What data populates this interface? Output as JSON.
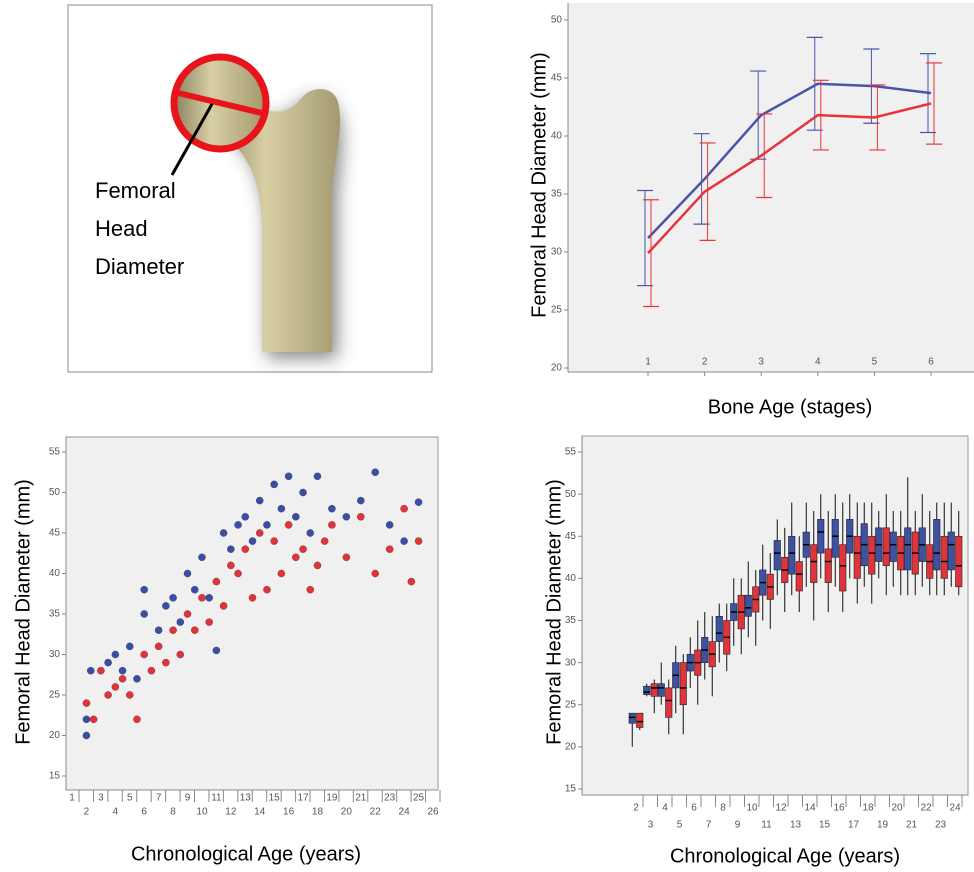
{
  "diagram": {
    "label": [
      "Femoral",
      "Head",
      "Diameter"
    ]
  },
  "chart_data": [
    {
      "type": "line",
      "x_label": "Bone Age (stages)",
      "y_label": "Femoral Head Diameter (mm)",
      "categories": [
        "1",
        "2",
        "3",
        "4",
        "5",
        "6"
      ],
      "ylim": [
        20,
        50
      ],
      "yticks": [
        20,
        25,
        30,
        35,
        40,
        45,
        50
      ],
      "series": [
        {
          "color": "#4a55a8",
          "values": [
            31.2,
            36.3,
            41.8,
            44.5,
            44.3,
            43.7
          ],
          "errors": [
            4.1,
            3.9,
            3.8,
            4.0,
            3.2,
            3.4
          ]
        },
        {
          "color": "#e8333b",
          "values": [
            29.9,
            35.2,
            38.3,
            41.8,
            41.6,
            42.8
          ],
          "errors": [
            4.6,
            4.2,
            3.6,
            3.0,
            2.8,
            3.5
          ]
        }
      ]
    },
    {
      "type": "scatter",
      "x_label": "Chronological Age (years)",
      "y_label": "Femoral Head Diameter (mm)",
      "xlim": [
        1,
        26
      ],
      "xticks": [
        1,
        2,
        3,
        4,
        5,
        6,
        7,
        8,
        9,
        10,
        11,
        12,
        13,
        14,
        15,
        16,
        17,
        18,
        19,
        20,
        21,
        22,
        23,
        24,
        25,
        26
      ],
      "ylim": [
        15,
        55
      ],
      "yticks": [
        15,
        20,
        25,
        30,
        35,
        40,
        45,
        50,
        55
      ],
      "series": [
        {
          "color": "#3b4ea6",
          "x": [
            2,
            2,
            2.3,
            3.5,
            4,
            4.5,
            5,
            5.5,
            6,
            6,
            7,
            7.5,
            8,
            8.5,
            9,
            9.5,
            10,
            10.5,
            11,
            11.5,
            12,
            12.5,
            13,
            13.5,
            14,
            14.5,
            15,
            15.5,
            16,
            16.5,
            17,
            17.5,
            18,
            19,
            20,
            21,
            22,
            23,
            24,
            25
          ],
          "y": [
            20,
            22,
            28,
            29,
            30,
            28,
            31,
            27,
            38,
            35,
            33,
            36,
            37,
            34,
            40,
            38,
            42,
            37,
            30.5,
            45,
            43,
            46,
            47,
            44,
            49,
            46,
            51,
            48,
            52,
            47,
            50,
            45,
            52,
            48,
            47,
            49,
            52.5,
            46,
            44,
            48.8
          ]
        },
        {
          "color": "#e3323a",
          "x": [
            2,
            2.5,
            3,
            3.5,
            4,
            4.5,
            5,
            5.5,
            6,
            6.5,
            7,
            7.5,
            8,
            8.5,
            9,
            9.5,
            10,
            10.5,
            11,
            11.5,
            12,
            12.5,
            13,
            13.5,
            14,
            14.5,
            15,
            15.5,
            16,
            16.5,
            17,
            17.5,
            18,
            18.5,
            19,
            20,
            21,
            22,
            23,
            24,
            24.5,
            25
          ],
          "y": [
            24,
            22,
            28,
            25,
            26,
            27,
            25,
            22,
            30,
            28,
            31,
            29,
            33,
            30,
            35,
            33,
            37,
            34,
            39,
            36,
            41,
            40,
            43,
            37,
            45,
            38,
            44,
            40,
            46,
            42,
            43,
            38,
            41,
            44,
            46,
            42,
            47,
            40,
            43,
            48,
            39,
            44
          ]
        }
      ]
    },
    {
      "type": "box",
      "x_label": "Chronological Age (years)",
      "y_label": "Femoral Head Diameter (mm)",
      "categories": [
        "2",
        "3",
        "4",
        "5",
        "6",
        "7",
        "8",
        "9",
        "10",
        "11",
        "12",
        "13",
        "14",
        "15",
        "16",
        "17",
        "18",
        "19",
        "20",
        "21",
        "22",
        "23",
        "24"
      ],
      "ylim": [
        15,
        55
      ],
      "yticks": [
        15,
        20,
        25,
        30,
        35,
        40,
        45,
        50,
        55
      ],
      "series": [
        {
          "color": "#3f51a3",
          "min": [
            20,
            26,
            25,
            24,
            27,
            28,
            30,
            32,
            33,
            35,
            38,
            38,
            39,
            40,
            39,
            40,
            39,
            40,
            39,
            38,
            39,
            38,
            39
          ],
          "q1": [
            22.8,
            26.2,
            26,
            27,
            29,
            30,
            32.5,
            35,
            35.5,
            38,
            41,
            40.5,
            42.5,
            43,
            42.5,
            43,
            41.5,
            42,
            42,
            41,
            42,
            41,
            41
          ],
          "median": [
            23.5,
            26.5,
            27,
            28.5,
            30,
            31.5,
            33.5,
            36,
            36.5,
            39.5,
            43,
            43,
            44,
            45.5,
            45,
            45,
            44,
            44,
            44,
            44,
            44,
            43,
            44
          ],
          "q3": [
            24,
            27.2,
            27.5,
            30,
            31,
            33,
            35.5,
            37,
            38,
            41,
            44.5,
            45,
            45.5,
            47,
            47,
            47,
            46.5,
            46,
            45.5,
            46,
            46,
            47,
            45.5
          ],
          "max": [
            24,
            27.5,
            30,
            32,
            33,
            36,
            37,
            40,
            42,
            44,
            47,
            49,
            49,
            50,
            50,
            50,
            49,
            48,
            48,
            52,
            50,
            49,
            49
          ]
        },
        {
          "color": "#e0343c",
          "min": [
            22,
            24,
            21.5,
            21.5,
            25,
            26,
            29,
            31,
            32,
            34,
            36,
            36,
            35,
            36,
            36,
            37,
            37,
            38,
            38,
            38,
            38,
            38,
            38
          ],
          "q1": [
            22.3,
            26,
            23.5,
            25,
            28.5,
            29.5,
            31,
            34,
            36,
            37.5,
            39.5,
            38.5,
            39.5,
            39.5,
            38.5,
            40,
            40.5,
            41.5,
            41,
            40.5,
            40,
            40,
            39
          ],
          "median": [
            23,
            27,
            25.5,
            27,
            30,
            31,
            33,
            36,
            37.5,
            39,
            41,
            40.5,
            42,
            42,
            41.5,
            43,
            43,
            43,
            43,
            43,
            42,
            42,
            41.5
          ],
          "q3": [
            24,
            27.5,
            27,
            30,
            31.5,
            32.5,
            35,
            38,
            39,
            40.5,
            42.5,
            42,
            44,
            43.5,
            44,
            45,
            45,
            46,
            45,
            45.5,
            44,
            45,
            45
          ],
          "max": [
            24,
            28,
            28,
            31,
            35,
            35.5,
            37,
            40,
            41,
            43,
            46,
            45,
            48,
            48,
            49,
            49,
            49,
            50,
            48,
            48,
            48,
            49,
            48
          ]
        }
      ]
    }
  ]
}
